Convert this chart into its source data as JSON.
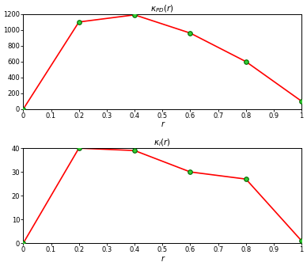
{
  "top": {
    "title": "$\\kappa_{PD}(r)$",
    "xlabel": "r",
    "x": [
      0,
      0.2,
      0.4,
      0.6,
      0.8,
      1.0
    ],
    "y": [
      0,
      1100,
      1190,
      960,
      600,
      100
    ],
    "ylim": [
      0,
      1200
    ],
    "yticks": [
      0,
      200,
      400,
      600,
      800,
      1000,
      1200
    ],
    "xticks": [
      0,
      0.1,
      0.2,
      0.3,
      0.4,
      0.5,
      0.6,
      0.7,
      0.8,
      0.9,
      1.0
    ]
  },
  "bottom": {
    "title": "$\\kappa_I(r)$",
    "xlabel": "r",
    "x": [
      0,
      0.2,
      0.4,
      0.6,
      0.8,
      1.0
    ],
    "y": [
      0,
      40,
      39,
      30,
      27,
      1
    ],
    "ylim": [
      0,
      40
    ],
    "yticks": [
      0,
      10,
      20,
      30,
      40
    ],
    "xticks": [
      0,
      0.1,
      0.2,
      0.3,
      0.4,
      0.5,
      0.6,
      0.7,
      0.8,
      0.9,
      1.0
    ]
  },
  "line_color": "#ff0000",
  "marker_facecolor": "#33cc33",
  "marker_edgecolor": "#006600",
  "marker_style": "o",
  "marker_size": 4,
  "line_width": 1.2,
  "plot_bg_color": "#ffffff",
  "fig_bg_color": "#ffffff"
}
